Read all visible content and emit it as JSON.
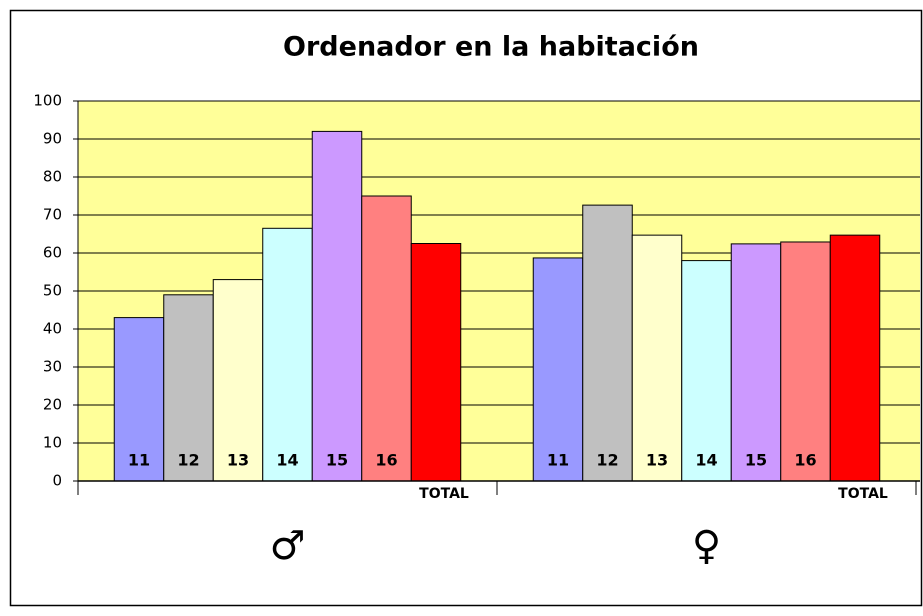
{
  "chart_data": {
    "type": "bar",
    "title": "Ordenador en la habitación",
    "categories": [
      "♂",
      "♀"
    ],
    "series": [
      {
        "name": "11",
        "color": "#9999ff",
        "values": [
          43,
          58.7
        ]
      },
      {
        "name": "12",
        "color": "#c0c0c0",
        "values": [
          49,
          72.6
        ]
      },
      {
        "name": "13",
        "color": "#ffffcc",
        "values": [
          53,
          64.7
        ]
      },
      {
        "name": "14",
        "color": "#ccffff",
        "values": [
          66.5,
          58
        ]
      },
      {
        "name": "15",
        "color": "#cc99ff",
        "values": [
          92,
          62.4
        ]
      },
      {
        "name": "16",
        "color": "#ff8080",
        "values": [
          75,
          62.9
        ]
      },
      {
        "name": "TOTAL",
        "color": "#ff0000",
        "values": [
          62.5,
          64.7
        ]
      }
    ],
    "ylim": [
      0,
      100
    ],
    "yticks": [
      0,
      10,
      20,
      30,
      40,
      50,
      60,
      70,
      80,
      90,
      100
    ],
    "grid": true
  }
}
